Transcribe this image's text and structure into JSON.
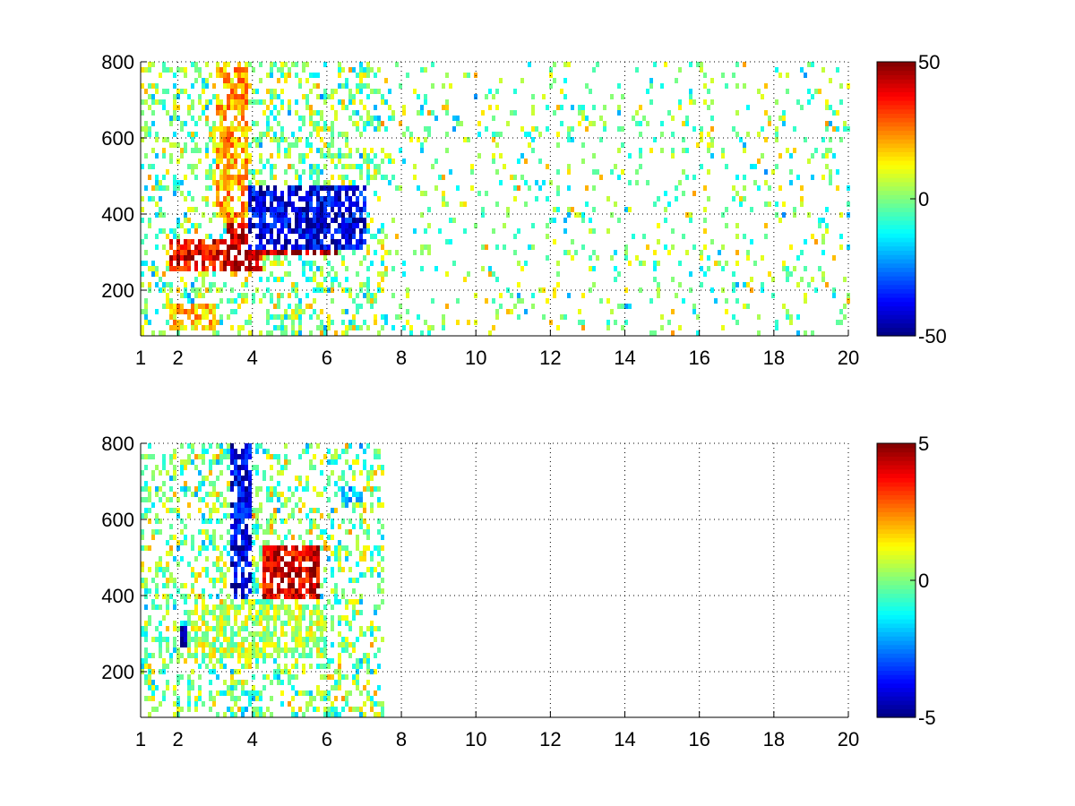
{
  "figure": {
    "background": "#ffffff",
    "colormap": "jet",
    "colormap_stops": [
      "#00007f",
      "#0000ff",
      "#007fff",
      "#00ffff",
      "#7fff7f",
      "#ffff00",
      "#ff7f00",
      "#ff0000",
      "#7f0000"
    ]
  },
  "chart_data": [
    {
      "type": "heatmap",
      "title": "",
      "xlabel": "",
      "ylabel": "",
      "xlim": [
        1,
        20
      ],
      "ylim": [
        80,
        800
      ],
      "xticks": [
        1,
        2,
        4,
        6,
        8,
        10,
        12,
        14,
        16,
        18,
        20
      ],
      "yticks": [
        200,
        400,
        600,
        800
      ],
      "grid": true,
      "colorbar": {
        "clim": [
          -50,
          50
        ],
        "ticks": [
          -50,
          0,
          50
        ],
        "location": "right"
      },
      "nan_color": "#ffffff",
      "features": [
        {
          "description_hidden": true,
          "x": [
            1.7,
            4.2
          ],
          "y": [
            260,
            340
          ],
          "value": 40
        },
        {
          "x": [
            3.3,
            6.2
          ],
          "y": [
            300,
            460
          ],
          "value": 45
        },
        {
          "x": [
            3.8,
            7.0
          ],
          "y": [
            320,
            480
          ],
          "value": -40
        },
        {
          "x": [
            3.0,
            3.8
          ],
          "y": [
            380,
            800
          ],
          "value": 20
        },
        {
          "x": [
            1.7,
            3.0
          ],
          "y": [
            100,
            170
          ],
          "value": 18
        }
      ]
    },
    {
      "type": "heatmap",
      "title": "",
      "xlabel": "",
      "ylabel": "",
      "xlim": [
        1,
        20
      ],
      "ylim": [
        80,
        800
      ],
      "xticks": [
        1,
        2,
        4,
        6,
        8,
        10,
        12,
        14,
        16,
        18,
        20
      ],
      "yticks": [
        200,
        400,
        600,
        800
      ],
      "grid": true,
      "colorbar": {
        "clim": [
          -5,
          5
        ],
        "ticks": [
          -5,
          0,
          5
        ],
        "location": "right"
      },
      "nan_color": "#ffffff",
      "features": [
        {
          "x": [
            2.0,
            3.6
          ],
          "y": [
            270,
            330
          ],
          "value": -4.5
        },
        {
          "x": [
            3.4,
            3.9
          ],
          "y": [
            400,
            800
          ],
          "value": -4
        },
        {
          "x": [
            4.2,
            5.8
          ],
          "y": [
            400,
            540
          ],
          "value": 4
        },
        {
          "x": [
            2.2,
            6.0
          ],
          "y": [
            240,
            380
          ],
          "value": 0.5
        },
        {
          "x": [
            6.3,
            6.9
          ],
          "y": [
            650,
            690
          ],
          "value": -2
        }
      ]
    }
  ]
}
